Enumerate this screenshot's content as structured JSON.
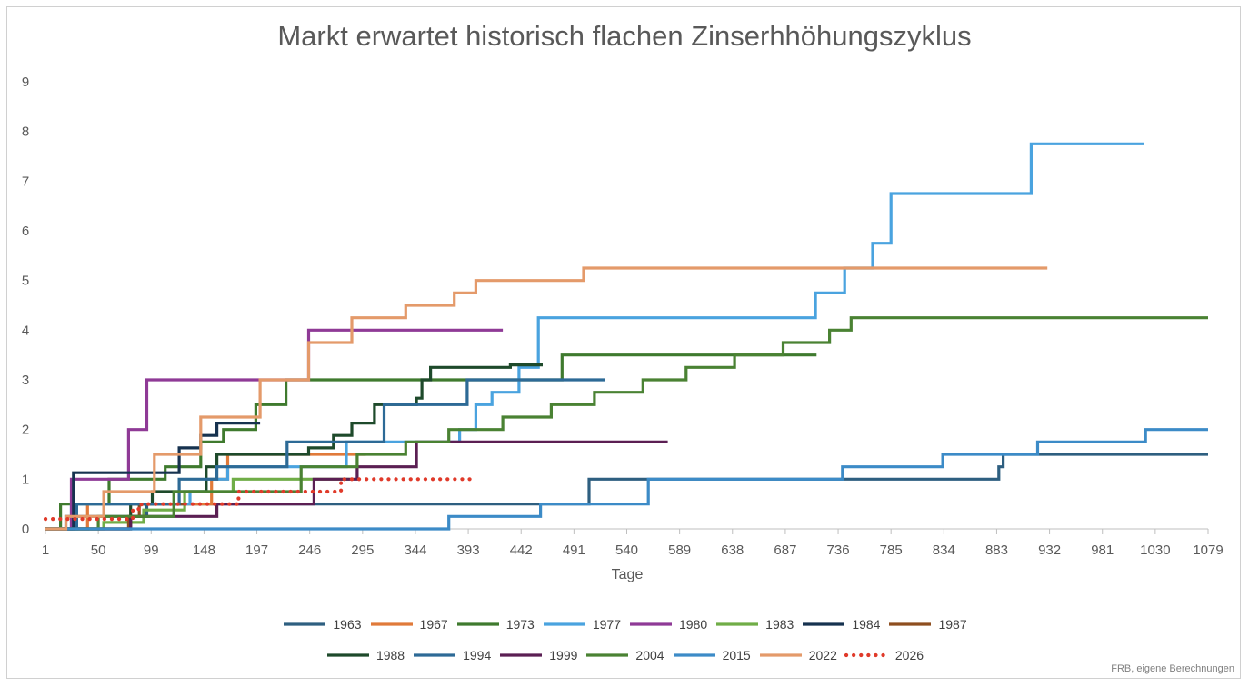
{
  "chart_data": {
    "type": "line",
    "title": "Markt erwartet historisch flachen Zinserhhöhungszyklus",
    "xlabel": "Tage",
    "ylabel": "",
    "xlim": [
      1,
      1079
    ],
    "ylim": [
      0,
      9
    ],
    "x_ticks": [
      "1",
      "50",
      "99",
      "148",
      "197",
      "246",
      "295",
      "344",
      "393",
      "442",
      "491",
      "540",
      "589",
      "638",
      "687",
      "736",
      "785",
      "834",
      "883",
      "932",
      "981",
      "1030",
      "1079"
    ],
    "y_ticks": [
      "0",
      "1",
      "2",
      "3",
      "4",
      "5",
      "6",
      "7",
      "8",
      "9"
    ],
    "grid": false,
    "legend_position": "bottom",
    "source_note": "FRB, eigene Berechnungen",
    "series": [
      {
        "name": "1963",
        "color": "#2e5f80",
        "dash": false,
        "points": [
          [
            1,
            0
          ],
          [
            20,
            0
          ],
          [
            20,
            0.25
          ],
          [
            95,
            0.25
          ],
          [
            95,
            0.5
          ],
          [
            505,
            0.5
          ],
          [
            505,
            1.0
          ],
          [
            885,
            1.0
          ],
          [
            885,
            1.25
          ],
          [
            889,
            1.25
          ],
          [
            889,
            1.5
          ],
          [
            1079,
            1.5
          ]
        ]
      },
      {
        "name": "1967",
        "color": "#e07a3a",
        "dash": false,
        "points": [
          [
            1,
            0
          ],
          [
            40,
            0
          ],
          [
            40,
            0.5
          ],
          [
            155,
            0.5
          ],
          [
            155,
            1.0
          ],
          [
            170,
            1.0
          ],
          [
            170,
            1.5
          ],
          [
            298,
            1.5
          ]
        ]
      },
      {
        "name": "1973",
        "color": "#3f7a2e",
        "dash": false,
        "points": [
          [
            1,
            0
          ],
          [
            15,
            0
          ],
          [
            15,
            0.5
          ],
          [
            60,
            0.5
          ],
          [
            60,
            1.0
          ],
          [
            112,
            1.0
          ],
          [
            112,
            1.25
          ],
          [
            145,
            1.25
          ],
          [
            145,
            1.75
          ],
          [
            166,
            1.75
          ],
          [
            166,
            2.0
          ],
          [
            196,
            2.0
          ],
          [
            196,
            2.5
          ],
          [
            224,
            2.5
          ],
          [
            224,
            3.0
          ],
          [
            480,
            3.0
          ],
          [
            480,
            3.5
          ],
          [
            716,
            3.5
          ]
        ]
      },
      {
        "name": "1977",
        "color": "#4aa3df",
        "dash": false,
        "points": [
          [
            1,
            0
          ],
          [
            25,
            0
          ],
          [
            25,
            0.5
          ],
          [
            135,
            0.5
          ],
          [
            135,
            0.75
          ],
          [
            150,
            0.75
          ],
          [
            150,
            1.0
          ],
          [
            170,
            1.0
          ],
          [
            170,
            1.25
          ],
          [
            280,
            1.25
          ],
          [
            280,
            1.75
          ],
          [
            385,
            1.75
          ],
          [
            385,
            2.0
          ],
          [
            400,
            2.0
          ],
          [
            400,
            2.5
          ],
          [
            415,
            2.5
          ],
          [
            415,
            2.75
          ],
          [
            440,
            2.75
          ],
          [
            440,
            3.25
          ],
          [
            458,
            3.25
          ],
          [
            458,
            4.25
          ],
          [
            715,
            4.25
          ],
          [
            715,
            4.75
          ],
          [
            742,
            4.75
          ],
          [
            742,
            5.25
          ],
          [
            768,
            5.25
          ],
          [
            768,
            5.75
          ],
          [
            785,
            5.75
          ],
          [
            785,
            6.75
          ],
          [
            915,
            6.75
          ],
          [
            915,
            7.75
          ],
          [
            1020,
            7.75
          ]
        ]
      },
      {
        "name": "1980",
        "color": "#8f3a96",
        "dash": false,
        "points": [
          [
            1,
            0
          ],
          [
            25,
            0
          ],
          [
            25,
            1.0
          ],
          [
            78,
            1.0
          ],
          [
            78,
            2.0
          ],
          [
            95,
            2.0
          ],
          [
            95,
            3.0
          ],
          [
            245,
            3.0
          ],
          [
            245,
            4.0
          ],
          [
            425,
            4.0
          ]
        ]
      },
      {
        "name": "1983",
        "color": "#70ad47",
        "dash": false,
        "points": [
          [
            1,
            0
          ],
          [
            55,
            0
          ],
          [
            55,
            0.13
          ],
          [
            92,
            0.13
          ],
          [
            92,
            0.38
          ],
          [
            130,
            0.38
          ],
          [
            130,
            0.75
          ],
          [
            175,
            0.75
          ],
          [
            175,
            1.0
          ],
          [
            283,
            1.0
          ]
        ]
      },
      {
        "name": "1984",
        "color": "#16324f",
        "dash": false,
        "points": [
          [
            1,
            0
          ],
          [
            27,
            0
          ],
          [
            27,
            1.13
          ],
          [
            125,
            1.13
          ],
          [
            125,
            1.63
          ],
          [
            145,
            1.63
          ],
          [
            145,
            1.88
          ],
          [
            160,
            1.88
          ],
          [
            160,
            2.13
          ],
          [
            200,
            2.13
          ]
        ]
      },
      {
        "name": "1987",
        "color": "#8e4e1f",
        "dash": false,
        "points": [
          [
            1,
            0
          ],
          [
            78,
            0
          ],
          [
            78,
            0.25
          ],
          [
            88,
            0.25
          ],
          [
            88,
            0.5
          ],
          [
            130,
            0.5
          ]
        ]
      },
      {
        "name": "1988",
        "color": "#1e4a2b",
        "dash": false,
        "points": [
          [
            1,
            0
          ],
          [
            80,
            0
          ],
          [
            80,
            0.5
          ],
          [
            100,
            0.5
          ],
          [
            100,
            0.75
          ],
          [
            150,
            0.75
          ],
          [
            150,
            1.25
          ],
          [
            160,
            1.25
          ],
          [
            160,
            1.5
          ],
          [
            245,
            1.5
          ],
          [
            245,
            1.63
          ],
          [
            268,
            1.63
          ],
          [
            268,
            1.88
          ],
          [
            285,
            1.88
          ],
          [
            285,
            2.13
          ],
          [
            306,
            2.13
          ],
          [
            306,
            2.5
          ],
          [
            345,
            2.5
          ],
          [
            345,
            2.63
          ],
          [
            350,
            2.63
          ],
          [
            350,
            3.0
          ],
          [
            358,
            3.0
          ],
          [
            358,
            3.25
          ],
          [
            432,
            3.25
          ],
          [
            432,
            3.3
          ],
          [
            462,
            3.3
          ]
        ]
      },
      {
        "name": "1994",
        "color": "#2d6a96",
        "dash": false,
        "points": [
          [
            1,
            0
          ],
          [
            30,
            0
          ],
          [
            30,
            0.5
          ],
          [
            125,
            0.5
          ],
          [
            125,
            1.0
          ],
          [
            160,
            1.0
          ],
          [
            160,
            1.25
          ],
          [
            225,
            1.25
          ],
          [
            225,
            1.75
          ],
          [
            315,
            1.75
          ],
          [
            315,
            2.5
          ],
          [
            392,
            2.5
          ],
          [
            392,
            3.0
          ],
          [
            520,
            3.0
          ]
        ]
      },
      {
        "name": "1999",
        "color": "#5b1f53",
        "dash": false,
        "points": [
          [
            1,
            0
          ],
          [
            80,
            0
          ],
          [
            80,
            0.25
          ],
          [
            160,
            0.25
          ],
          [
            160,
            0.5
          ],
          [
            250,
            0.5
          ],
          [
            250,
            1.0
          ],
          [
            290,
            1.0
          ],
          [
            290,
            1.25
          ],
          [
            345,
            1.25
          ],
          [
            345,
            1.75
          ],
          [
            578,
            1.75
          ]
        ]
      },
      {
        "name": "2004",
        "color": "#4a8233",
        "dash": false,
        "points": [
          [
            1,
            0
          ],
          [
            50,
            0
          ],
          [
            50,
            0.25
          ],
          [
            120,
            0.25
          ],
          [
            120,
            0.75
          ],
          [
            238,
            0.75
          ],
          [
            238,
            1.25
          ],
          [
            290,
            1.25
          ],
          [
            290,
            1.5
          ],
          [
            335,
            1.5
          ],
          [
            335,
            1.75
          ],
          [
            375,
            1.75
          ],
          [
            375,
            2.0
          ],
          [
            425,
            2.0
          ],
          [
            425,
            2.25
          ],
          [
            470,
            2.25
          ],
          [
            470,
            2.5
          ],
          [
            510,
            2.5
          ],
          [
            510,
            2.75
          ],
          [
            555,
            2.75
          ],
          [
            555,
            3.0
          ],
          [
            595,
            3.0
          ],
          [
            595,
            3.25
          ],
          [
            640,
            3.25
          ],
          [
            640,
            3.5
          ],
          [
            685,
            3.5
          ],
          [
            685,
            3.75
          ],
          [
            728,
            3.75
          ],
          [
            728,
            4.0
          ],
          [
            748,
            4.0
          ],
          [
            748,
            4.25
          ],
          [
            1079,
            4.25
          ]
        ]
      },
      {
        "name": "2015",
        "color": "#3c8bc7",
        "dash": false,
        "points": [
          [
            1,
            0
          ],
          [
            375,
            0
          ],
          [
            375,
            0.25
          ],
          [
            460,
            0.25
          ],
          [
            460,
            0.5
          ],
          [
            560,
            0.5
          ],
          [
            560,
            1.0
          ],
          [
            740,
            1.0
          ],
          [
            740,
            1.25
          ],
          [
            833,
            1.25
          ],
          [
            833,
            1.5
          ],
          [
            921,
            1.5
          ],
          [
            921,
            1.75
          ],
          [
            1021,
            1.75
          ],
          [
            1021,
            2.0
          ],
          [
            1079,
            2.0
          ]
        ]
      },
      {
        "name": "2022",
        "color": "#e49a6a",
        "dash": false,
        "points": [
          [
            1,
            0
          ],
          [
            20,
            0
          ],
          [
            20,
            0.25
          ],
          [
            55,
            0.25
          ],
          [
            55,
            0.75
          ],
          [
            102,
            0.75
          ],
          [
            102,
            1.5
          ],
          [
            145,
            1.5
          ],
          [
            145,
            2.25
          ],
          [
            200,
            2.25
          ],
          [
            200,
            3.0
          ],
          [
            245,
            3.0
          ],
          [
            245,
            3.75
          ],
          [
            285,
            3.75
          ],
          [
            285,
            4.25
          ],
          [
            335,
            4.25
          ],
          [
            335,
            4.5
          ],
          [
            380,
            4.5
          ],
          [
            380,
            4.75
          ],
          [
            400,
            4.75
          ],
          [
            400,
            5.0
          ],
          [
            500,
            5.0
          ],
          [
            500,
            5.25
          ],
          [
            930,
            5.25
          ]
        ]
      },
      {
        "name": "2026",
        "color": "#e03a2a",
        "dash": true,
        "points": [
          [
            1,
            0.2
          ],
          [
            82,
            0.2
          ],
          [
            82,
            0.4
          ],
          [
            90,
            0.4
          ],
          [
            90,
            0.5
          ],
          [
            180,
            0.5
          ],
          [
            180,
            0.75
          ],
          [
            275,
            0.75
          ],
          [
            275,
            1.0
          ],
          [
            400,
            1.0
          ]
        ]
      }
    ]
  }
}
